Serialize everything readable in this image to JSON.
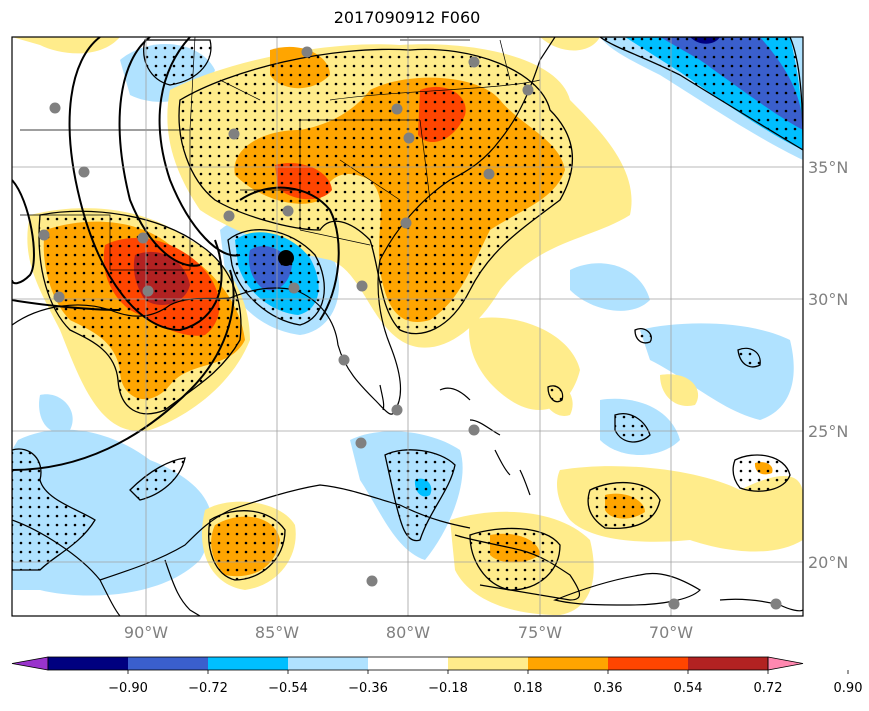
{
  "title": "2017090912 F060",
  "longitude_labels": [
    "90°W",
    "85°W",
    "80°W",
    "75°W",
    "70°W"
  ],
  "latitude_labels": [
    "35°N",
    "30°N",
    "25°N",
    "20°N"
  ],
  "colorbar": {
    "ticks": [
      "−0.90",
      "−0.72",
      "−0.54",
      "−0.36",
      "−0.18",
      "0.18",
      "0.36",
      "0.54",
      "0.72",
      "0.90"
    ],
    "colors": [
      "#9933cc",
      "#000080",
      "#3a5fcd",
      "#00bfff",
      "#b0e2ff",
      "#ffffff",
      "#ffec8b",
      "#ffa500",
      "#ff4500",
      "#b22222",
      "#ff88b0"
    ]
  },
  "colors": {
    "land_border": "#000000",
    "grid": "#a0a0a0",
    "station_marker": "#808080",
    "storm_center": "#000000",
    "stipple": "#000000"
  }
}
